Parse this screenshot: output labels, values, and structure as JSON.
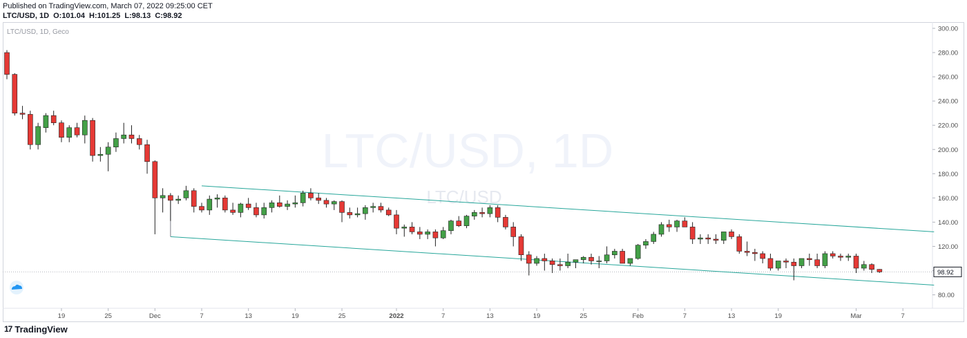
{
  "header": {
    "published": "Published on TradingView.com, March 07, 2022 09:25:00 CET",
    "symbol_line": "LTC/USD, 1D",
    "ohlc": {
      "o": "O:101.04",
      "h": "H:101.25",
      "l": "L:98.13",
      "c": "C:98.92"
    }
  },
  "chart": {
    "legend_text": "LTC/USD, 1D, Geco",
    "watermark_large": "LTC/USD, 1D",
    "watermark_small": "LTC/USD",
    "price_label": "98.92",
    "colors": {
      "up": "#43a047",
      "down": "#e53935",
      "channel": "#26a69a",
      "grid_text": "#4d4d4d",
      "watermark": "#f0f3fa"
    }
  },
  "footer": {
    "logo_icon": "tradingview-logo-icon",
    "brand": "TradingView"
  },
  "chart_data": {
    "type": "candlestick",
    "title": "LTC/USD, 1D",
    "ylim": [
      70,
      305
    ],
    "y_ticks": [
      "300.00",
      "280.00",
      "260.00",
      "240.00",
      "220.00",
      "200.00",
      "180.00",
      "160.00",
      "140.00",
      "120.00",
      "100.00",
      "80.00"
    ],
    "x_ticks": [
      "19",
      "25",
      "Dec",
      "7",
      "13",
      "19",
      "25",
      "2022",
      "7",
      "13",
      "19",
      "25",
      "Feb",
      "7",
      "13",
      "19",
      "Mar",
      "7"
    ],
    "last_price": 98.92,
    "channel": {
      "upper": [
        {
          "date": "2021-12-07",
          "price": 170
        },
        {
          "date": "2022-03-11",
          "price": 132
        }
      ],
      "lower": [
        {
          "date": "2021-12-03",
          "price": 128
        },
        {
          "date": "2022-03-11",
          "price": 88
        }
      ]
    },
    "ohlc": [
      [
        280,
        282,
        258,
        262
      ],
      [
        262,
        263,
        228,
        230
      ],
      [
        230,
        236,
        225,
        229
      ],
      [
        229,
        232,
        200,
        204
      ],
      [
        204,
        222,
        200,
        219
      ],
      [
        218,
        230,
        214,
        228
      ],
      [
        228,
        232,
        220,
        222
      ],
      [
        222,
        224,
        206,
        210
      ],
      [
        210,
        220,
        206,
        218
      ],
      [
        218,
        222,
        210,
        212
      ],
      [
        212,
        228,
        205,
        224
      ],
      [
        224,
        226,
        190,
        195
      ],
      [
        195,
        202,
        190,
        196
      ],
      [
        196,
        206,
        182,
        202
      ],
      [
        202,
        214,
        198,
        209
      ],
      [
        209,
        222,
        205,
        212
      ],
      [
        212,
        220,
        205,
        209
      ],
      [
        209,
        212,
        200,
        204
      ],
      [
        204,
        208,
        180,
        190
      ],
      [
        190,
        191,
        130,
        160
      ],
      [
        160,
        168,
        148,
        162
      ],
      [
        162,
        164,
        141,
        158
      ],
      [
        158,
        162,
        155,
        159
      ],
      [
        160,
        170,
        158,
        166
      ],
      [
        166,
        168,
        148,
        153
      ],
      [
        153,
        156,
        148,
        150
      ],
      [
        150,
        162,
        146,
        159
      ],
      [
        159,
        163,
        152,
        160
      ],
      [
        160,
        162,
        148,
        150
      ],
      [
        150,
        156,
        146,
        148
      ],
      [
        148,
        156,
        144,
        155
      ],
      [
        155,
        160,
        150,
        152
      ],
      [
        152,
        156,
        144,
        146
      ],
      [
        146,
        156,
        143,
        152
      ],
      [
        152,
        158,
        148,
        156
      ],
      [
        156,
        162,
        152,
        153
      ],
      [
        153,
        158,
        150,
        155
      ],
      [
        155,
        162,
        152,
        156
      ],
      [
        156,
        166,
        153,
        164
      ],
      [
        164,
        168,
        158,
        160
      ],
      [
        160,
        164,
        155,
        158
      ],
      [
        158,
        160,
        152,
        155
      ],
      [
        155,
        158,
        150,
        157
      ],
      [
        157,
        158,
        140,
        148
      ],
      [
        148,
        152,
        143,
        146
      ],
      [
        146,
        152,
        144,
        147
      ],
      [
        147,
        154,
        142,
        152
      ],
      [
        152,
        156,
        148,
        153
      ],
      [
        153,
        156,
        148,
        150
      ],
      [
        150,
        152,
        145,
        146
      ],
      [
        146,
        150,
        130,
        135
      ],
      [
        135,
        138,
        128,
        136
      ],
      [
        136,
        140,
        130,
        132
      ],
      [
        132,
        136,
        126,
        130
      ],
      [
        130,
        134,
        126,
        132
      ],
      [
        132,
        134,
        120,
        127
      ],
      [
        127,
        136,
        126,
        133
      ],
      [
        133,
        142,
        130,
        141
      ],
      [
        141,
        145,
        136,
        137
      ],
      [
        137,
        146,
        135,
        145
      ],
      [
        145,
        150,
        142,
        148
      ],
      [
        148,
        152,
        144,
        147
      ],
      [
        147,
        154,
        144,
        152
      ],
      [
        152,
        154,
        140,
        144
      ],
      [
        144,
        146,
        134,
        136
      ],
      [
        136,
        140,
        120,
        128
      ],
      [
        128,
        130,
        108,
        113
      ],
      [
        113,
        116,
        96,
        106
      ],
      [
        106,
        112,
        104,
        110
      ],
      [
        110,
        114,
        100,
        108
      ],
      [
        108,
        110,
        98,
        105
      ],
      [
        105,
        110,
        100,
        104
      ],
      [
        104,
        114,
        102,
        107
      ],
      [
        107,
        109,
        102,
        109
      ],
      [
        109,
        112,
        106,
        111
      ],
      [
        111,
        114,
        105,
        108
      ],
      [
        108,
        112,
        102,
        108
      ],
      [
        108,
        120,
        106,
        113
      ],
      [
        113,
        118,
        110,
        116
      ],
      [
        116,
        118,
        108,
        106
      ],
      [
        106,
        110,
        104,
        110
      ],
      [
        110,
        122,
        109,
        121
      ],
      [
        121,
        126,
        118,
        124
      ],
      [
        124,
        132,
        122,
        130
      ],
      [
        130,
        140,
        128,
        138
      ],
      [
        138,
        142,
        132,
        136
      ],
      [
        136,
        142,
        132,
        141
      ],
      [
        141,
        144,
        136,
        136
      ],
      [
        136,
        140,
        122,
        126
      ],
      [
        126,
        130,
        122,
        127
      ],
      [
        127,
        130,
        122,
        126
      ],
      [
        126,
        130,
        122,
        125
      ],
      [
        125,
        132,
        122,
        132
      ],
      [
        132,
        134,
        126,
        128
      ],
      [
        128,
        130,
        114,
        116
      ],
      [
        116,
        124,
        112,
        115
      ],
      [
        115,
        118,
        108,
        114
      ],
      [
        114,
        116,
        106,
        110
      ],
      [
        110,
        114,
        100,
        102
      ],
      [
        102,
        108,
        100,
        108
      ],
      [
        108,
        110,
        102,
        107
      ],
      [
        107,
        110,
        92,
        104
      ],
      [
        104,
        110,
        102,
        110
      ],
      [
        110,
        114,
        104,
        109
      ],
      [
        109,
        114,
        102,
        104
      ],
      [
        104,
        116,
        102,
        114
      ],
      [
        114,
        116,
        110,
        112
      ],
      [
        112,
        114,
        108,
        111
      ],
      [
        111,
        114,
        108,
        112
      ],
      [
        112,
        114,
        98,
        102
      ],
      [
        102,
        108,
        100,
        105
      ],
      [
        105,
        106,
        98,
        101
      ],
      [
        101.04,
        101.25,
        98.13,
        98.92
      ]
    ]
  }
}
